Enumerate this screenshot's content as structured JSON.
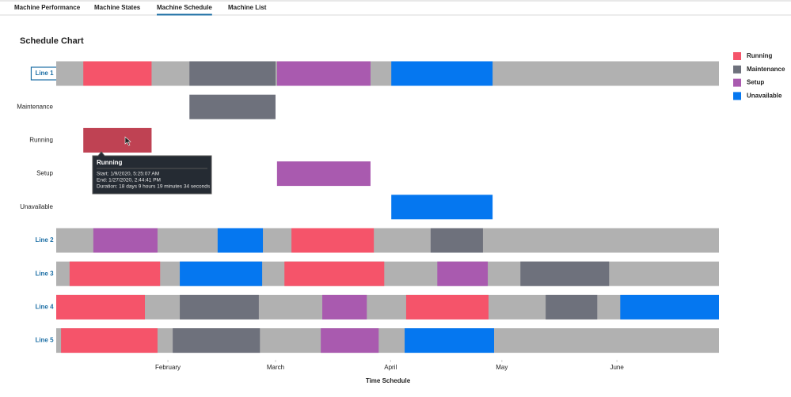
{
  "tabs": [
    {
      "label": "Machine Performance",
      "active": false
    },
    {
      "label": "Machine States",
      "active": false
    },
    {
      "label": "Machine Schedule",
      "active": true
    },
    {
      "label": "Machine List",
      "active": false
    }
  ],
  "chart_data": {
    "type": "gantt",
    "title": "Schedule Chart",
    "x_label": "Time Schedule",
    "xlim": [
      0.9,
      179.5
    ],
    "xticks": [
      {
        "value": 31,
        "label": "February"
      },
      {
        "value": 60,
        "label": "March"
      },
      {
        "value": 91,
        "label": "April"
      },
      {
        "value": 121,
        "label": "May"
      },
      {
        "value": 152,
        "label": "June"
      }
    ],
    "track_color": "#b1b1b1",
    "legend": [
      {
        "name": "Running",
        "color": "#f5546a"
      },
      {
        "name": "Maintenance",
        "color": "#6e717c"
      },
      {
        "name": "Setup",
        "color": "#a95aaf"
      },
      {
        "name": "Unavailable",
        "color": "#0577f0"
      }
    ],
    "rows": [
      {
        "label": "Line 1",
        "track": true,
        "selected": true,
        "segments": [
          {
            "state": "Running",
            "start": 8.2,
            "end": 26.6
          },
          {
            "state": "Maintenance",
            "start": 36.8,
            "end": 60.0
          },
          {
            "state": "Setup",
            "start": 60.4,
            "end": 85.6
          },
          {
            "state": "Unavailable",
            "start": 91.2,
            "end": 118.5
          }
        ]
      },
      {
        "label": "Maintenance",
        "track": false,
        "segments": [
          {
            "state": "Maintenance",
            "start": 36.8,
            "end": 60.0
          }
        ]
      },
      {
        "label": "Running",
        "track": false,
        "segments": [
          {
            "state": "Running",
            "start": 8.2,
            "end": 26.6,
            "hovered": true
          }
        ]
      },
      {
        "label": "Setup",
        "track": false,
        "segments": [
          {
            "state": "Setup",
            "start": 60.4,
            "end": 85.6
          }
        ]
      },
      {
        "label": "Unavailable",
        "track": false,
        "segments": [
          {
            "state": "Unavailable",
            "start": 91.2,
            "end": 118.5
          }
        ]
      },
      {
        "label": "Line 2",
        "track": true,
        "segments": [
          {
            "state": "Setup",
            "start": 10.9,
            "end": 28.2
          },
          {
            "state": "Unavailable",
            "start": 44.4,
            "end": 56.6
          },
          {
            "state": "Running",
            "start": 64.3,
            "end": 86.5
          },
          {
            "state": "Maintenance",
            "start": 101.8,
            "end": 115.9
          }
        ]
      },
      {
        "label": "Line 3",
        "track": true,
        "segments": [
          {
            "state": "Running",
            "start": 4.5,
            "end": 28.9
          },
          {
            "state": "Unavailable",
            "start": 34.2,
            "end": 56.4
          },
          {
            "state": "Running",
            "start": 62.4,
            "end": 89.3
          },
          {
            "state": "Setup",
            "start": 103.6,
            "end": 117.2
          },
          {
            "state": "Maintenance",
            "start": 126.0,
            "end": 149.9
          }
        ]
      },
      {
        "label": "Line 4",
        "track": true,
        "segments": [
          {
            "state": "Running",
            "start": 0.9,
            "end": 24.8
          },
          {
            "state": "Maintenance",
            "start": 34.2,
            "end": 55.5
          },
          {
            "state": "Setup",
            "start": 72.6,
            "end": 84.6
          },
          {
            "state": "Running",
            "start": 95.2,
            "end": 117.4
          },
          {
            "state": "Maintenance",
            "start": 132.8,
            "end": 146.7
          },
          {
            "state": "Unavailable",
            "start": 152.9,
            "end": 179.5
          }
        ]
      },
      {
        "label": "Line 5",
        "track": true,
        "segments": [
          {
            "state": "Running",
            "start": 2.2,
            "end": 28.2
          },
          {
            "state": "Maintenance",
            "start": 32.3,
            "end": 55.8
          },
          {
            "state": "Setup",
            "start": 72.2,
            "end": 87.8
          },
          {
            "state": "Unavailable",
            "start": 94.8,
            "end": 118.9
          }
        ]
      }
    ],
    "tooltip": {
      "title": "Running",
      "lines": [
        "Start: 1/9/2020, 5:25:07 AM",
        "End: 1/27/2020, 2:44:41 PM",
        "Duration: 18 days 9 hours 19 minutes 34 seconds"
      ]
    }
  }
}
